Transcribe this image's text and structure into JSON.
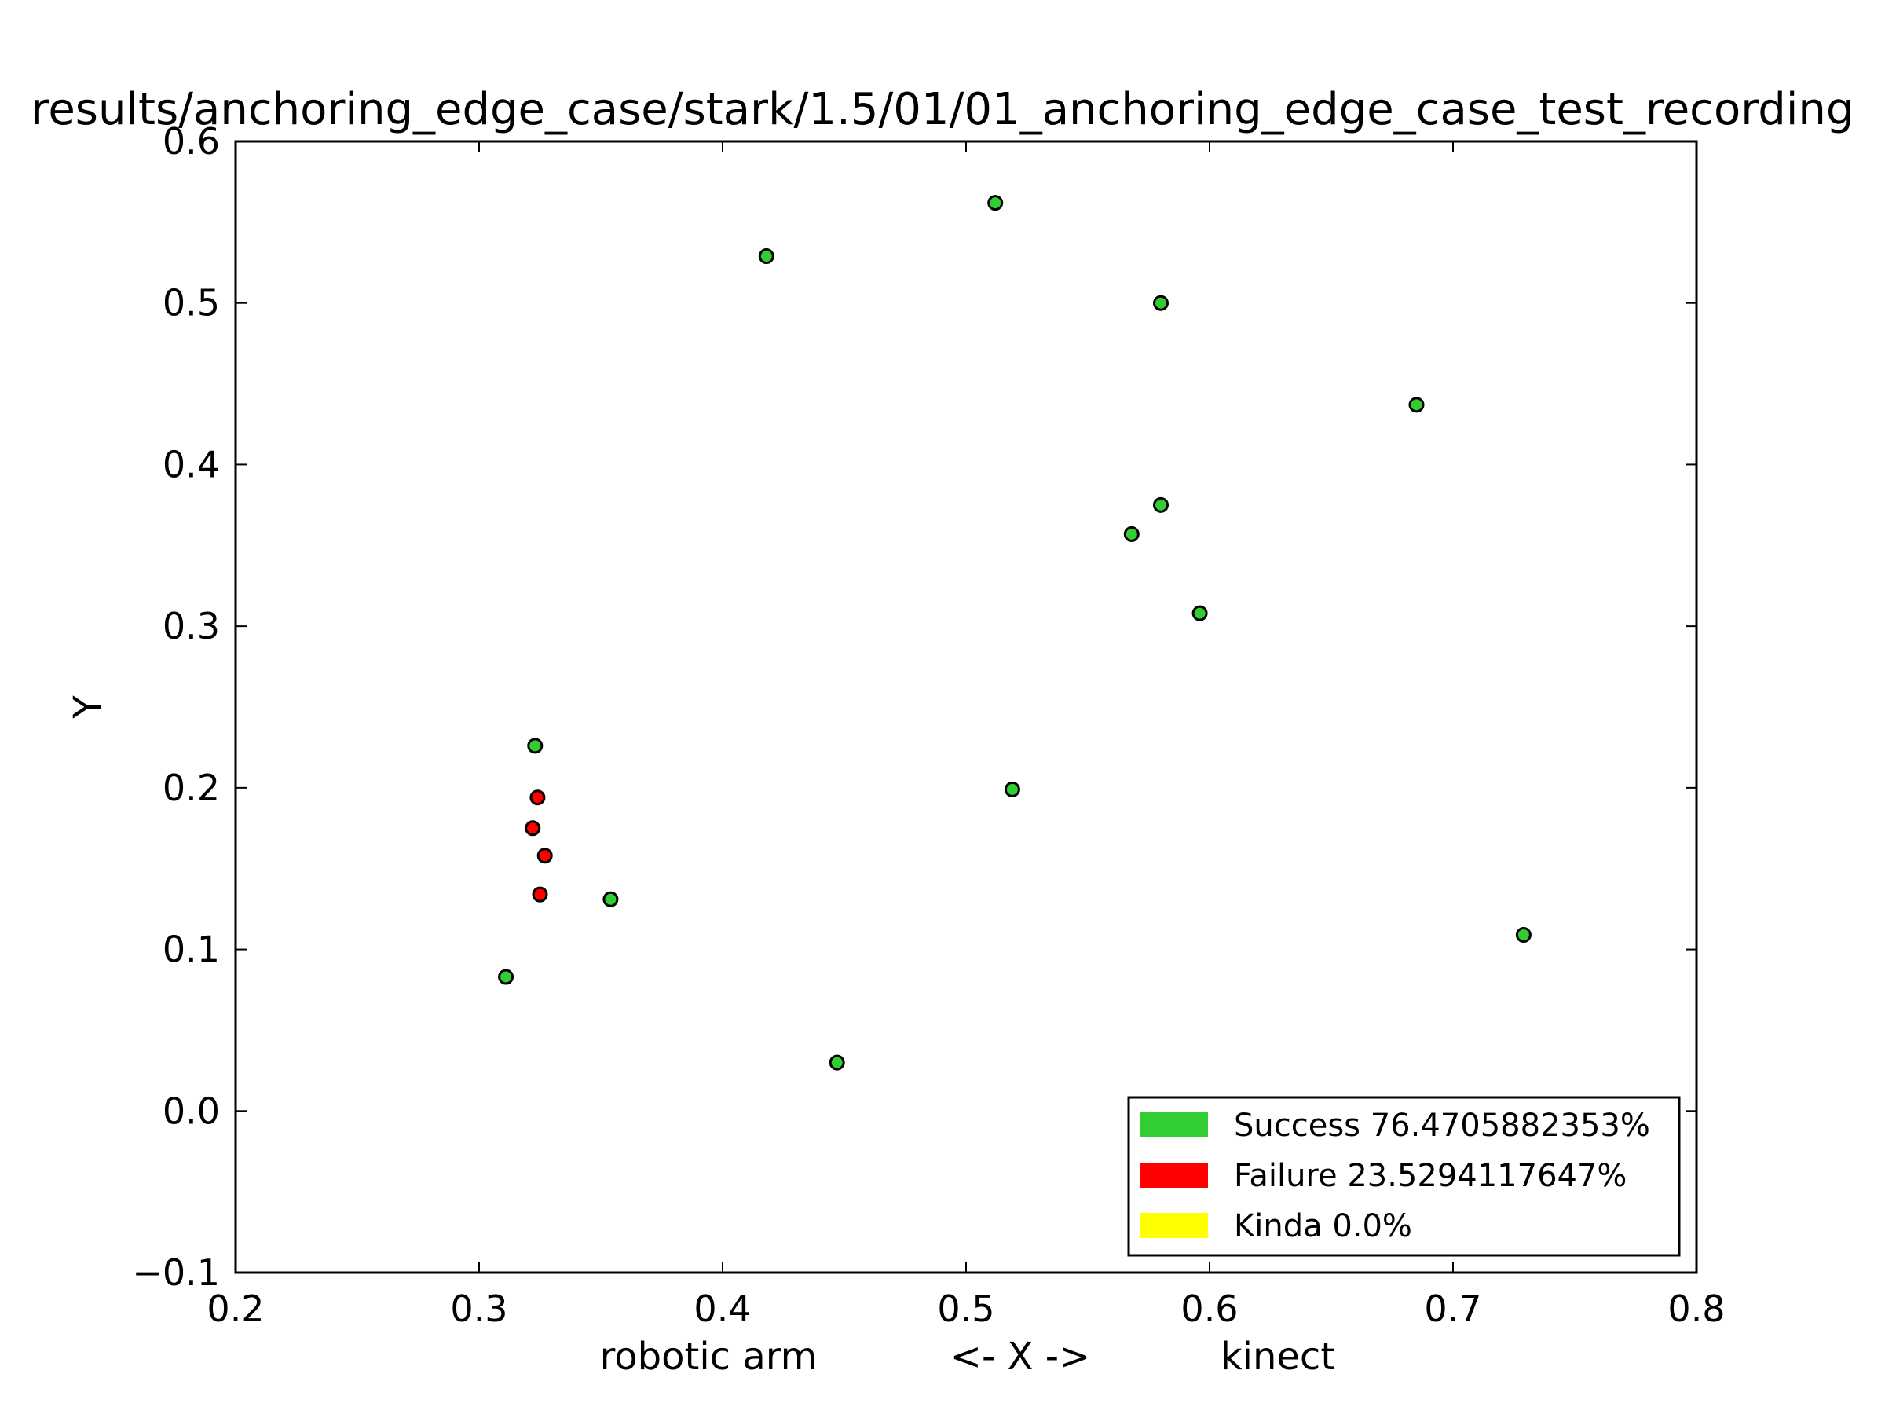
{
  "chart_data": {
    "type": "scatter",
    "title": "results/anchoring_edge_case/stark/1.5/01/01_anchoring_edge_case_test_recording",
    "xlabel": "<- X ->",
    "xlabel_left": "robotic arm",
    "xlabel_right": "kinect",
    "ylabel": "Y",
    "xlim": [
      0.2,
      0.8
    ],
    "ylim": [
      -0.1,
      0.6
    ],
    "x_ticks": [
      0.2,
      0.3,
      0.4,
      0.5,
      0.6,
      0.7,
      0.8
    ],
    "x_tick_labels": [
      "0.2",
      "0.3",
      "0.4",
      "0.5",
      "0.6",
      "0.7",
      "0.8"
    ],
    "y_ticks": [
      -0.1,
      0.0,
      0.1,
      0.2,
      0.3,
      0.4,
      0.5,
      0.6
    ],
    "y_tick_labels": [
      "−0.1",
      "0.0",
      "0.1",
      "0.2",
      "0.3",
      "0.4",
      "0.5",
      "0.6"
    ],
    "grid": false,
    "legend_position": "lower-right",
    "series": [
      {
        "name": "Success 76.4705882353%",
        "color": "#32cd32",
        "points": [
          {
            "x": 0.512,
            "y": 0.562
          },
          {
            "x": 0.418,
            "y": 0.529
          },
          {
            "x": 0.58,
            "y": 0.5
          },
          {
            "x": 0.685,
            "y": 0.437
          },
          {
            "x": 0.58,
            "y": 0.375
          },
          {
            "x": 0.568,
            "y": 0.357
          },
          {
            "x": 0.596,
            "y": 0.308
          },
          {
            "x": 0.323,
            "y": 0.226
          },
          {
            "x": 0.519,
            "y": 0.199
          },
          {
            "x": 0.354,
            "y": 0.131
          },
          {
            "x": 0.729,
            "y": 0.109
          },
          {
            "x": 0.311,
            "y": 0.083
          },
          {
            "x": 0.447,
            "y": 0.03
          }
        ]
      },
      {
        "name": "Failure 23.5294117647%",
        "color": "#ff0000",
        "points": [
          {
            "x": 0.324,
            "y": 0.194
          },
          {
            "x": 0.322,
            "y": 0.175
          },
          {
            "x": 0.327,
            "y": 0.158
          },
          {
            "x": 0.325,
            "y": 0.134
          }
        ]
      },
      {
        "name": "Kinda 0.0%",
        "color": "#ffff00",
        "points": []
      }
    ]
  }
}
